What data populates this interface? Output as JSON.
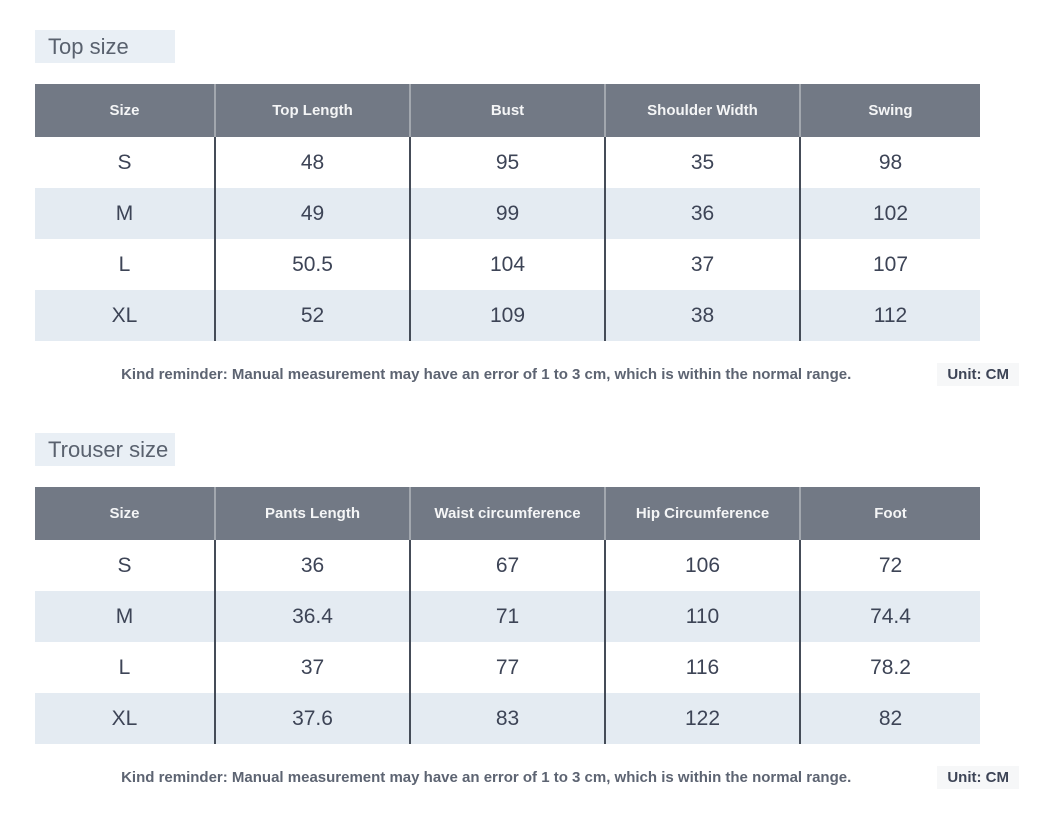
{
  "colors": {
    "header_bg": "#727985",
    "header_text": "#f4f5f6",
    "header_divider": "#a2a7ae",
    "body_divider": "#454c58",
    "zebra_row_bg": "#e4ebf2",
    "title_bg": "#e9eff5",
    "title_text": "#59616e",
    "unit_badge_bg": "#f6f7f8",
    "body_text": "#3d4456",
    "reminder_text": "#5d6472"
  },
  "chart_data": [
    {
      "type": "table",
      "title": "Top size",
      "columns": [
        "Size",
        "Top Length",
        "Bust",
        "Shoulder Width",
        "Swing"
      ],
      "rows": [
        [
          "S",
          "48",
          "95",
          "35",
          "98"
        ],
        [
          "M",
          "49",
          "99",
          "36",
          "102"
        ],
        [
          "L",
          "50.5",
          "104",
          "37",
          "107"
        ],
        [
          "XL",
          "52",
          "109",
          "38",
          "112"
        ]
      ],
      "reminder": "Kind reminder: Manual measurement may have an error of 1 to 3 cm, which is within the normal range.",
      "unit": "Unit: CM"
    },
    {
      "type": "table",
      "title": "Trouser size",
      "columns": [
        "Size",
        "Pants Length",
        "Waist circumference",
        "Hip Circumference",
        "Foot"
      ],
      "rows": [
        [
          "S",
          "36",
          "67",
          "106",
          "72"
        ],
        [
          "M",
          "36.4",
          "71",
          "110",
          "74.4"
        ],
        [
          "L",
          "37",
          "77",
          "116",
          "78.2"
        ],
        [
          "XL",
          "37.6",
          "83",
          "122",
          "82"
        ]
      ],
      "reminder": "Kind reminder: Manual measurement may have an error of 1 to 3 cm, which is within the normal range.",
      "unit": "Unit: CM"
    }
  ]
}
